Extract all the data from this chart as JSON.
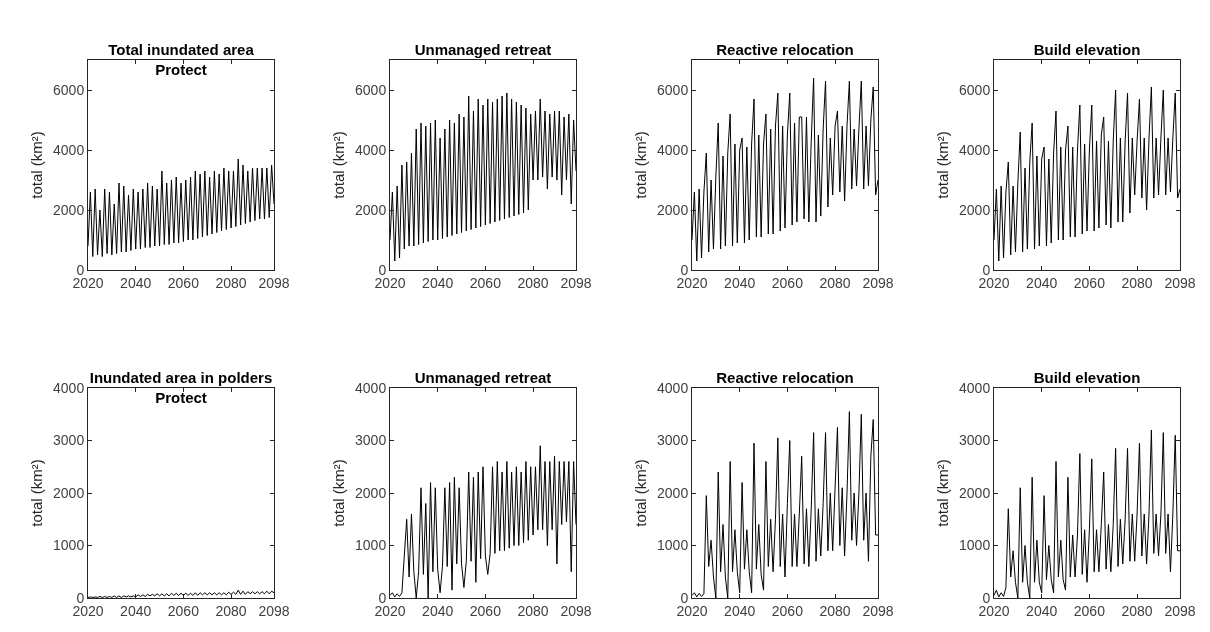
{
  "chart_data": [
    {
      "type": "line",
      "title": "Total inundated area\nProtect",
      "ylabel": "total (km²)",
      "xlim": [
        2020,
        2098
      ],
      "xticks": [
        2020,
        2040,
        2060,
        2080,
        2098
      ],
      "ylim": [
        0,
        7000
      ],
      "yticks": [
        0,
        2000,
        4000,
        6000
      ],
      "x": [
        2020,
        2021,
        2022,
        2023,
        2024,
        2025,
        2026,
        2027,
        2028,
        2029,
        2030,
        2031,
        2032,
        2033,
        2034,
        2035,
        2036,
        2037,
        2038,
        2039,
        2040,
        2041,
        2042,
        2043,
        2044,
        2045,
        2046,
        2047,
        2048,
        2049,
        2050,
        2051,
        2052,
        2053,
        2054,
        2055,
        2056,
        2057,
        2058,
        2059,
        2060,
        2061,
        2062,
        2063,
        2064,
        2065,
        2066,
        2067,
        2068,
        2069,
        2070,
        2071,
        2072,
        2073,
        2074,
        2075,
        2076,
        2077,
        2078,
        2079,
        2080,
        2081,
        2082,
        2083,
        2084,
        2085,
        2086,
        2087,
        2088,
        2089,
        2090,
        2091,
        2092,
        2093,
        2094,
        2095,
        2096,
        2097,
        2098
      ],
      "series": [
        {
          "color": "#000000",
          "values": [
            800,
            2600,
            450,
            2700,
            500,
            2000,
            450,
            2700,
            550,
            2600,
            500,
            2200,
            550,
            2900,
            600,
            2800,
            600,
            2500,
            650,
            2700,
            700,
            2600,
            700,
            2700,
            750,
            2900,
            750,
            2800,
            800,
            2700,
            800,
            3300,
            850,
            2900,
            850,
            3000,
            900,
            3100,
            900,
            2900,
            950,
            3000,
            1000,
            3100,
            1000,
            3300,
            1050,
            3200,
            1100,
            3300,
            1150,
            3100,
            1200,
            3300,
            1250,
            3200,
            1300,
            3400,
            1350,
            3300,
            1400,
            3300,
            1450,
            3700,
            1500,
            3500,
            1550,
            3300,
            1600,
            3400,
            1650,
            3400,
            1700,
            3400,
            1700,
            3400,
            1750,
            3500,
            2200
          ]
        }
      ]
    },
    {
      "type": "line",
      "title": "Unmanaged retreat",
      "ylabel": "total (km²)",
      "xlim": [
        2020,
        2098
      ],
      "xticks": [
        2020,
        2040,
        2060,
        2080,
        2098
      ],
      "ylim": [
        0,
        7000
      ],
      "yticks": [
        0,
        2000,
        4000,
        6000
      ],
      "x": [
        2020,
        2021,
        2022,
        2023,
        2024,
        2025,
        2026,
        2027,
        2028,
        2029,
        2030,
        2031,
        2032,
        2033,
        2034,
        2035,
        2036,
        2037,
        2038,
        2039,
        2040,
        2041,
        2042,
        2043,
        2044,
        2045,
        2046,
        2047,
        2048,
        2049,
        2050,
        2051,
        2052,
        2053,
        2054,
        2055,
        2056,
        2057,
        2058,
        2059,
        2060,
        2061,
        2062,
        2063,
        2064,
        2065,
        2066,
        2067,
        2068,
        2069,
        2070,
        2071,
        2072,
        2073,
        2074,
        2075,
        2076,
        2077,
        2078,
        2079,
        2080,
        2081,
        2082,
        2083,
        2084,
        2085,
        2086,
        2087,
        2088,
        2089,
        2090,
        2091,
        2092,
        2093,
        2094,
        2095,
        2096,
        2097,
        2098
      ],
      "series": [
        {
          "color": "#000000",
          "values": [
            1000,
            2600,
            300,
            2800,
            400,
            3500,
            700,
            3600,
            800,
            3900,
            800,
            4700,
            850,
            4900,
            900,
            4800,
            950,
            4900,
            1000,
            5000,
            1000,
            4400,
            1050,
            4700,
            1100,
            5000,
            1150,
            4900,
            1200,
            5200,
            1250,
            5100,
            1300,
            5800,
            1350,
            5300,
            1400,
            5700,
            1450,
            5500,
            1500,
            5700,
            1550,
            5600,
            1600,
            5700,
            1650,
            5800,
            1700,
            5900,
            1750,
            5700,
            1800,
            5600,
            1850,
            5500,
            1900,
            5400,
            2000,
            5200,
            3000,
            5300,
            3000,
            5700,
            3100,
            5300,
            2700,
            5200,
            3100,
            5300,
            3000,
            5300,
            2500,
            5100,
            3000,
            5200,
            2200,
            5000,
            3300
          ]
        }
      ]
    },
    {
      "type": "line",
      "title": "Reactive relocation",
      "ylabel": "total (km²)",
      "xlim": [
        2020,
        2098
      ],
      "xticks": [
        2020,
        2040,
        2060,
        2080,
        2098
      ],
      "ylim": [
        0,
        7000
      ],
      "yticks": [
        0,
        2000,
        4000,
        6000
      ],
      "x": [
        2020,
        2021,
        2022,
        2023,
        2024,
        2025,
        2026,
        2027,
        2028,
        2029,
        2030,
        2031,
        2032,
        2033,
        2034,
        2035,
        2036,
        2037,
        2038,
        2039,
        2040,
        2041,
        2042,
        2043,
        2044,
        2045,
        2046,
        2047,
        2048,
        2049,
        2050,
        2051,
        2052,
        2053,
        2054,
        2055,
        2056,
        2057,
        2058,
        2059,
        2060,
        2061,
        2062,
        2063,
        2064,
        2065,
        2066,
        2067,
        2068,
        2069,
        2070,
        2071,
        2072,
        2073,
        2074,
        2075,
        2076,
        2077,
        2078,
        2079,
        2080,
        2081,
        2082,
        2083,
        2084,
        2085,
        2086,
        2087,
        2088,
        2089,
        2090,
        2091,
        2092,
        2093,
        2094,
        2095,
        2096,
        2097,
        2098
      ],
      "series": [
        {
          "color": "#000000",
          "values": [
            1000,
            2600,
            300,
            2700,
            400,
            2600,
            3900,
            600,
            3000,
            700,
            3100,
            4900,
            700,
            3800,
            800,
            3900,
            5200,
            800,
            4200,
            900,
            4000,
            4400,
            900,
            4100,
            1000,
            4200,
            5700,
            1100,
            4500,
            1100,
            4200,
            5200,
            1200,
            4700,
            1200,
            4800,
            5900,
            1300,
            4800,
            1400,
            4500,
            5900,
            1500,
            4900,
            1600,
            5100,
            5100,
            1700,
            5100,
            1600,
            4300,
            6400,
            1600,
            4500,
            1800,
            4700,
            6300,
            2100,
            4400,
            2500,
            4800,
            5300,
            2600,
            4800,
            2300,
            4800,
            6300,
            2700,
            4700,
            2800,
            4700,
            6300,
            2700,
            4800,
            2800,
            5000,
            6100,
            2500,
            3000
          ]
        }
      ]
    },
    {
      "type": "line",
      "title": "Build elevation",
      "ylabel": "total (km²)",
      "xlim": [
        2020,
        2098
      ],
      "xticks": [
        2020,
        2040,
        2060,
        2080,
        2098
      ],
      "ylim": [
        0,
        7000
      ],
      "yticks": [
        0,
        2000,
        4000,
        6000
      ],
      "x": [
        2020,
        2021,
        2022,
        2023,
        2024,
        2025,
        2026,
        2027,
        2028,
        2029,
        2030,
        2031,
        2032,
        2033,
        2034,
        2035,
        2036,
        2037,
        2038,
        2039,
        2040,
        2041,
        2042,
        2043,
        2044,
        2045,
        2046,
        2047,
        2048,
        2049,
        2050,
        2051,
        2052,
        2053,
        2054,
        2055,
        2056,
        2057,
        2058,
        2059,
        2060,
        2061,
        2062,
        2063,
        2064,
        2065,
        2066,
        2067,
        2068,
        2069,
        2070,
        2071,
        2072,
        2073,
        2074,
        2075,
        2076,
        2077,
        2078,
        2079,
        2080,
        2081,
        2082,
        2083,
        2084,
        2085,
        2086,
        2087,
        2088,
        2089,
        2090,
        2091,
        2092,
        2093,
        2094,
        2095,
        2096,
        2097,
        2098
      ],
      "series": [
        {
          "color": "#000000",
          "values": [
            1000,
            2700,
            300,
            2800,
            400,
            2600,
            3600,
            500,
            2800,
            600,
            2900,
            4600,
            600,
            3400,
            700,
            3600,
            4900,
            700,
            3800,
            800,
            3700,
            4100,
            800,
            3700,
            900,
            3900,
            5300,
            1000,
            4100,
            1000,
            4000,
            4800,
            1100,
            4100,
            1100,
            4000,
            5500,
            1200,
            4200,
            1300,
            4000,
            5500,
            1300,
            4300,
            1400,
            4500,
            5100,
            1500,
            4300,
            1400,
            4300,
            6000,
            1600,
            4400,
            1600,
            4300,
            5900,
            1900,
            4400,
            2500,
            4300,
            5700,
            2400,
            4400,
            2000,
            4400,
            6100,
            2400,
            4400,
            2500,
            4400,
            6000,
            2500,
            4400,
            2600,
            4400,
            5900,
            2400,
            2700
          ]
        }
      ]
    },
    {
      "type": "line",
      "title": "Inundated area in polders\nProtect",
      "ylabel": "total (km²)",
      "xlim": [
        2020,
        2098
      ],
      "xticks": [
        2020,
        2040,
        2060,
        2080,
        2098
      ],
      "ylim": [
        0,
        4000
      ],
      "yticks": [
        0,
        1000,
        2000,
        3000,
        4000
      ],
      "x": [
        2020,
        2021,
        2022,
        2023,
        2024,
        2025,
        2026,
        2027,
        2028,
        2029,
        2030,
        2031,
        2032,
        2033,
        2034,
        2035,
        2036,
        2037,
        2038,
        2039,
        2040,
        2041,
        2042,
        2043,
        2044,
        2045,
        2046,
        2047,
        2048,
        2049,
        2050,
        2051,
        2052,
        2053,
        2054,
        2055,
        2056,
        2057,
        2058,
        2059,
        2060,
        2061,
        2062,
        2063,
        2064,
        2065,
        2066,
        2067,
        2068,
        2069,
        2070,
        2071,
        2072,
        2073,
        2074,
        2075,
        2076,
        2077,
        2078,
        2079,
        2080,
        2081,
        2082,
        2083,
        2084,
        2085,
        2086,
        2087,
        2088,
        2089,
        2090,
        2091,
        2092,
        2093,
        2094,
        2095,
        2096,
        2097,
        2098
      ],
      "series": [
        {
          "color": "#000000",
          "values": [
            10,
            20,
            10,
            20,
            10,
            30,
            10,
            30,
            10,
            30,
            10,
            40,
            10,
            40,
            10,
            40,
            20,
            40,
            20,
            40,
            20,
            60,
            30,
            60,
            30,
            70,
            40,
            70,
            40,
            80,
            40,
            80,
            40,
            80,
            40,
            90,
            50,
            90,
            50,
            90,
            50,
            90,
            50,
            90,
            50,
            100,
            50,
            100,
            60,
            100,
            60,
            100,
            60,
            100,
            60,
            100,
            60,
            100,
            60,
            110,
            70,
            110,
            70,
            150,
            70,
            130,
            70,
            120,
            80,
            120,
            80,
            120,
            80,
            120,
            80,
            130,
            80,
            130,
            100
          ]
        }
      ]
    },
    {
      "type": "line",
      "title": "Unmanaged retreat",
      "ylabel": "total (km²)",
      "xlim": [
        2020,
        2098
      ],
      "xticks": [
        2020,
        2040,
        2060,
        2080,
        2098
      ],
      "ylim": [
        0,
        4000
      ],
      "yticks": [
        0,
        1000,
        2000,
        3000,
        4000
      ],
      "x": [
        2020,
        2021,
        2022,
        2023,
        2024,
        2025,
        2026,
        2027,
        2028,
        2029,
        2030,
        2031,
        2032,
        2033,
        2034,
        2035,
        2036,
        2037,
        2038,
        2039,
        2040,
        2041,
        2042,
        2043,
        2044,
        2045,
        2046,
        2047,
        2048,
        2049,
        2050,
        2051,
        2052,
        2053,
        2054,
        2055,
        2056,
        2057,
        2058,
        2059,
        2060,
        2061,
        2062,
        2063,
        2064,
        2065,
        2066,
        2067,
        2068,
        2069,
        2070,
        2071,
        2072,
        2073,
        2074,
        2075,
        2076,
        2077,
        2078,
        2079,
        2080,
        2081,
        2082,
        2083,
        2084,
        2085,
        2086,
        2087,
        2088,
        2089,
        2090,
        2091,
        2092,
        2093,
        2094,
        2095,
        2096,
        2097,
        2098
      ],
      "series": [
        {
          "color": "#000000",
          "values": [
            50,
            100,
            20,
            80,
            30,
            100,
            800,
            1500,
            400,
            1600,
            500,
            0,
            500,
            2100,
            450,
            1800,
            0,
            2200,
            500,
            2100,
            550,
            100,
            600,
            2100,
            600,
            2200,
            150,
            2300,
            650,
            2100,
            650,
            200,
            700,
            2400,
            700,
            2300,
            300,
            2400,
            750,
            2500,
            800,
            450,
            850,
            2500,
            850,
            2600,
            900,
            2400,
            900,
            2600,
            950,
            2400,
            1000,
            2500,
            1000,
            2400,
            1050,
            2600,
            1100,
            2500,
            1200,
            2500,
            1300,
            2900,
            1300,
            2600,
            1000,
            2600,
            1300,
            2700,
            650,
            2600,
            1400,
            2600,
            1450,
            2600,
            500,
            2600,
            1400
          ]
        }
      ]
    },
    {
      "type": "line",
      "title": "Reactive relocation",
      "ylabel": "total (km²)",
      "xlim": [
        2020,
        2098
      ],
      "xticks": [
        2020,
        2040,
        2060,
        2080,
        2098
      ],
      "ylim": [
        0,
        4000
      ],
      "yticks": [
        0,
        1000,
        2000,
        3000,
        4000
      ],
      "x": [
        2020,
        2021,
        2022,
        2023,
        2024,
        2025,
        2026,
        2027,
        2028,
        2029,
        2030,
        2031,
        2032,
        2033,
        2034,
        2035,
        2036,
        2037,
        2038,
        2039,
        2040,
        2041,
        2042,
        2043,
        2044,
        2045,
        2046,
        2047,
        2048,
        2049,
        2050,
        2051,
        2052,
        2053,
        2054,
        2055,
        2056,
        2057,
        2058,
        2059,
        2060,
        2061,
        2062,
        2063,
        2064,
        2065,
        2066,
        2067,
        2068,
        2069,
        2070,
        2071,
        2072,
        2073,
        2074,
        2075,
        2076,
        2077,
        2078,
        2079,
        2080,
        2081,
        2082,
        2083,
        2084,
        2085,
        2086,
        2087,
        2088,
        2089,
        2090,
        2091,
        2092,
        2093,
        2094,
        2095,
        2096,
        2097,
        2098
      ],
      "series": [
        {
          "color": "#000000",
          "values": [
            50,
            100,
            20,
            90,
            30,
            80,
            1950,
            600,
            1100,
            400,
            0,
            2400,
            500,
            1400,
            400,
            0,
            2600,
            500,
            1300,
            500,
            100,
            2200,
            550,
            1300,
            500,
            100,
            2950,
            550,
            1400,
            450,
            150,
            2600,
            600,
            1500,
            500,
            1500,
            3050,
            600,
            1600,
            400,
            1800,
            3000,
            600,
            1600,
            600,
            1600,
            2700,
            650,
            1700,
            600,
            1700,
            3150,
            700,
            1700,
            800,
            1800,
            3150,
            900,
            2000,
            900,
            2100,
            3250,
            1000,
            2100,
            800,
            2000,
            3550,
            1100,
            2000,
            1000,
            2000,
            3500,
            1100,
            2000,
            700,
            2700,
            3400,
            1200,
            1200
          ]
        }
      ]
    },
    {
      "type": "line",
      "title": "Build elevation",
      "ylabel": "total (km²)",
      "xlim": [
        2020,
        2098
      ],
      "xticks": [
        2020,
        2040,
        2060,
        2080,
        2098
      ],
      "ylim": [
        0,
        4000
      ],
      "yticks": [
        0,
        1000,
        2000,
        3000,
        4000
      ],
      "x": [
        2020,
        2021,
        2022,
        2023,
        2024,
        2025,
        2026,
        2027,
        2028,
        2029,
        2030,
        2031,
        2032,
        2033,
        2034,
        2035,
        2036,
        2037,
        2038,
        2039,
        2040,
        2041,
        2042,
        2043,
        2044,
        2045,
        2046,
        2047,
        2048,
        2049,
        2050,
        2051,
        2052,
        2053,
        2054,
        2055,
        2056,
        2057,
        2058,
        2059,
        2060,
        2061,
        2062,
        2063,
        2064,
        2065,
        2066,
        2067,
        2068,
        2069,
        2070,
        2071,
        2072,
        2073,
        2074,
        2075,
        2076,
        2077,
        2078,
        2079,
        2080,
        2081,
        2082,
        2083,
        2084,
        2085,
        2086,
        2087,
        2088,
        2089,
        2090,
        2091,
        2092,
        2093,
        2094,
        2095,
        2096,
        2097,
        2098
      ],
      "series": [
        {
          "color": "#000000",
          "values": [
            50,
            150,
            20,
            100,
            30,
            200,
            1700,
            400,
            900,
            300,
            0,
            2100,
            300,
            1000,
            300,
            0,
            2300,
            300,
            1100,
            300,
            100,
            1950,
            350,
            1000,
            350,
            100,
            2600,
            400,
            1100,
            350,
            150,
            2300,
            400,
            1200,
            400,
            1200,
            2750,
            450,
            1300,
            300,
            1300,
            2650,
            500,
            1300,
            500,
            1400,
            2400,
            550,
            1400,
            500,
            1400,
            2850,
            600,
            1500,
            650,
            1500,
            2850,
            700,
            1600,
            700,
            1600,
            2950,
            800,
            1600,
            650,
            1600,
            3200,
            850,
            1600,
            800,
            1600,
            3150,
            850,
            1600,
            500,
            1600,
            3100,
            900,
            900
          ]
        }
      ]
    }
  ]
}
